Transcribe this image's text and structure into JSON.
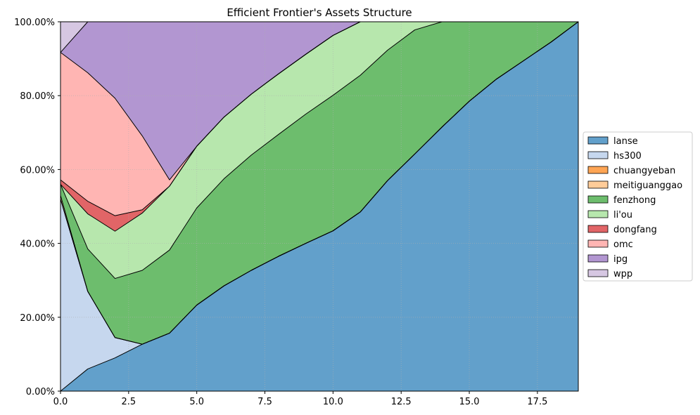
{
  "chart_data": {
    "type": "area",
    "stacked": true,
    "title": "Efficient Frontier's Assets Structure",
    "xlabel": "",
    "ylabel": "",
    "xlim": [
      0,
      19
    ],
    "ylim": [
      0,
      100
    ],
    "x_ticks": [
      0,
      2.5,
      5,
      7.5,
      10,
      12.5,
      15,
      17.5
    ],
    "x_tick_labels": [
      "0.0",
      "2.5",
      "5.0",
      "7.5",
      "10.0",
      "12.5",
      "15.0",
      "17.5"
    ],
    "y_ticks": [
      0,
      20,
      40,
      60,
      80,
      100
    ],
    "y_tick_labels": [
      "0.00%",
      "20.00%",
      "40.00%",
      "60.00%",
      "80.00%",
      "100.00%"
    ],
    "grid": true,
    "legend_position": "right-center",
    "x": [
      0,
      1,
      2,
      3,
      4,
      5,
      6,
      7,
      8,
      9,
      10,
      11,
      12,
      13,
      14,
      15,
      16,
      17,
      18,
      19
    ],
    "series": [
      {
        "name": "lanse",
        "color": "#62a0cb",
        "values": [
          0,
          6,
          9,
          12.7,
          15.7,
          23.3,
          28.5,
          32.7,
          36.5,
          40.0,
          43.4,
          48.5,
          57.0,
          64.2,
          71.5,
          78.5,
          84.5,
          89.5,
          94.5,
          100
        ]
      },
      {
        "name": "hs300",
        "color": "#c6d7ee",
        "values": [
          52,
          21,
          5.5,
          0,
          0,
          0,
          0,
          0,
          0,
          0,
          0,
          0,
          0,
          0,
          0,
          0,
          0,
          0,
          0,
          0
        ]
      },
      {
        "name": "chuangyeban",
        "color": "#ffa554",
        "values": [
          0,
          0,
          0,
          0,
          0,
          0,
          0,
          0,
          0,
          0,
          0,
          0,
          0,
          0,
          0,
          0,
          0,
          0,
          0,
          0
        ]
      },
      {
        "name": "meitiguanggao",
        "color": "#ffcc99",
        "values": [
          1,
          0,
          0,
          0,
          0,
          0,
          0,
          0,
          0,
          0,
          0,
          0,
          0,
          0,
          0,
          0,
          0,
          0,
          0,
          0
        ]
      },
      {
        "name": "fenzhong",
        "color": "#6dbd6d",
        "values": [
          3,
          11.5,
          16,
          20,
          22.5,
          26.3,
          29,
          31.2,
          33,
          35,
          36.7,
          37,
          35.3,
          33.6,
          28.5,
          21.5,
          15.5,
          10.5,
          5.5,
          0
        ]
      },
      {
        "name": "li'ou",
        "color": "#b7e7ad",
        "values": [
          0,
          9.5,
          12.8,
          15.5,
          17.3,
          16.7,
          16.7,
          16.5,
          16.4,
          16.2,
          16.2,
          14.5,
          7.7,
          2.2,
          0,
          0,
          0,
          0,
          0,
          0
        ]
      },
      {
        "name": "dongfang",
        "color": "#e16567",
        "values": [
          1.2,
          3.4,
          4.2,
          0.9,
          0,
          0,
          0,
          0,
          0,
          0,
          0,
          0,
          0,
          0,
          0,
          0,
          0,
          0,
          0,
          0
        ]
      },
      {
        "name": "omc",
        "color": "#ffb5b3",
        "values": [
          34.5,
          34.8,
          31.8,
          20,
          1.7,
          0,
          0,
          0,
          0,
          0,
          0,
          0,
          0,
          0,
          0,
          0,
          0,
          0,
          0,
          0
        ]
      },
      {
        "name": "ipg",
        "color": "#b296d1",
        "values": [
          0,
          13.8,
          20.7,
          30.9,
          42.8,
          33.7,
          25.8,
          19.6,
          14.1,
          8.8,
          3.7,
          0,
          0,
          0,
          0,
          0,
          0,
          0,
          0,
          0
        ]
      },
      {
        "name": "wpp",
        "color": "#d6c7e2",
        "values": [
          8.3,
          0,
          0,
          0,
          0,
          0,
          0,
          0,
          0,
          0,
          0,
          0,
          0,
          0,
          0,
          0,
          0,
          0,
          0,
          0
        ]
      }
    ]
  }
}
